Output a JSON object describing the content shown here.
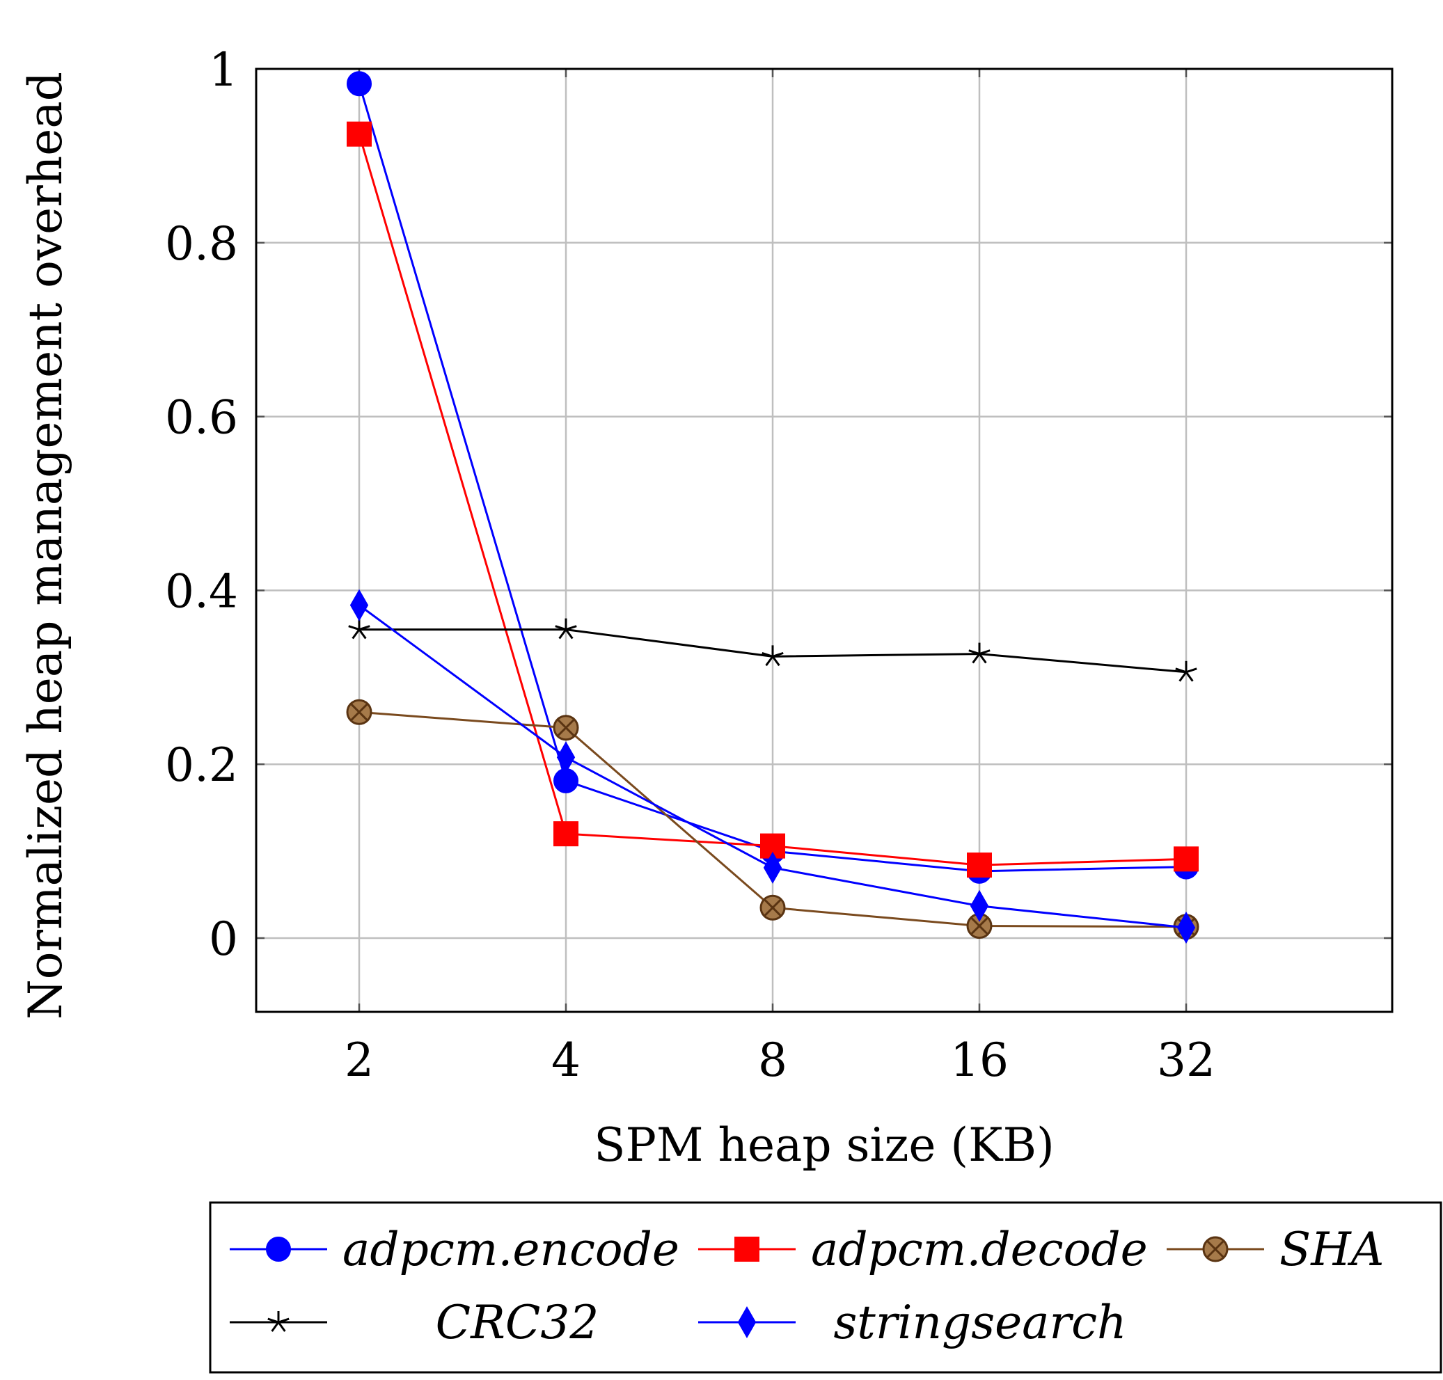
{
  "chart_data": {
    "type": "line",
    "xlabel": "SPM heap size (KB)",
    "ylabel": "Normalized heap management overhead",
    "categories": [
      "2",
      "4",
      "8",
      "16",
      "32"
    ],
    "y_ticks": [
      "0",
      "0.2",
      "0.4",
      "0.6",
      "0.8",
      "1"
    ],
    "ylim": [
      -0.087,
      1.0
    ],
    "grid": true,
    "legend_position": "bottom",
    "series": [
      {
        "name": "adpcm.encode",
        "color": "#0000ff",
        "marker": "circle",
        "values": [
          0.983,
          0.181,
          0.1,
          0.077,
          0.082
        ]
      },
      {
        "name": "adpcm.decode",
        "color": "#ff0000",
        "marker": "square",
        "values": [
          0.925,
          0.12,
          0.106,
          0.084,
          0.091
        ]
      },
      {
        "name": "SHA",
        "color": "#7a4a1e",
        "marker": "otimes",
        "values": [
          0.26,
          0.242,
          0.035,
          0.014,
          0.013
        ]
      },
      {
        "name": "CRC32",
        "color": "#000000",
        "marker": "star",
        "values": [
          0.355,
          0.355,
          0.324,
          0.327,
          0.306
        ]
      },
      {
        "name": "stringsearch",
        "color": "#0000ff",
        "marker": "diamond",
        "values": [
          0.383,
          0.208,
          0.081,
          0.037,
          0.012
        ]
      }
    ]
  }
}
